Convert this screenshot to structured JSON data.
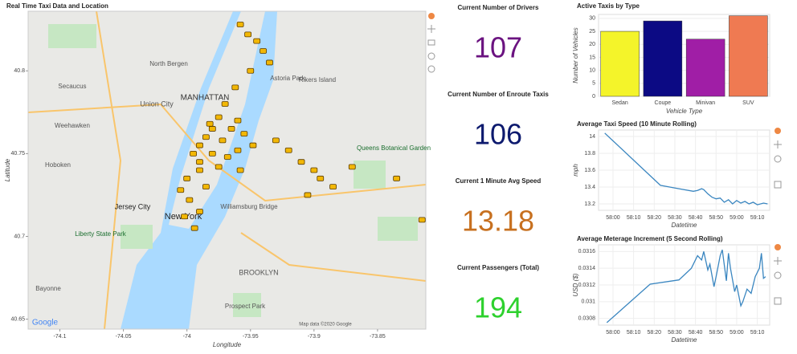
{
  "chart_data": [
    {
      "type": "scatter",
      "title": "Real Time Taxi Data and Location",
      "xlabel": "Longitude",
      "ylabel": "Latitude",
      "xlim": [
        -74.125,
        -73.812
      ],
      "ylim": [
        40.644,
        40.836
      ],
      "xticks": [
        -74.1,
        -74.05,
        -74,
        -73.95,
        -73.9,
        -73.85
      ],
      "yticks": [
        40.65,
        40.7,
        40.75,
        40.8
      ],
      "color": "#f2b705",
      "x": [
        -73.958,
        -73.952,
        -73.945,
        -73.94,
        -73.935,
        -73.95,
        -73.962,
        -73.97,
        -73.975,
        -73.98,
        -73.985,
        -73.99,
        -73.995,
        -73.99,
        -73.98,
        -73.972,
        -73.965,
        -73.96,
        -73.955,
        -73.948,
        -73.99,
        -74.0,
        -74.005,
        -73.998,
        -73.985,
        -73.975,
        -73.968,
        -73.99,
        -74.002,
        -73.994,
        -73.93,
        -73.92,
        -73.91,
        -73.9,
        -73.895,
        -73.885,
        -73.905,
        -73.87,
        -73.835,
        -73.815,
        -73.958,
        -73.982,
        -73.96
      ],
      "y": [
        40.828,
        40.822,
        40.818,
        40.812,
        40.805,
        40.8,
        40.79,
        40.78,
        40.772,
        40.765,
        40.76,
        40.755,
        40.75,
        40.745,
        40.75,
        40.758,
        40.765,
        40.77,
        40.762,
        40.755,
        40.74,
        40.735,
        40.728,
        40.722,
        40.73,
        40.742,
        40.748,
        40.715,
        40.712,
        40.705,
        40.758,
        40.752,
        40.745,
        40.74,
        40.735,
        40.73,
        40.725,
        40.742,
        40.735,
        40.71,
        40.74,
        40.768,
        40.752
      ]
    },
    {
      "type": "bar",
      "title": "Active Taxis by Type",
      "xlabel": "Vehicle Type",
      "ylabel": "Number of Vehicles",
      "categories": [
        "Sedan",
        "Coupe",
        "Minivan",
        "SUV"
      ],
      "values": [
        25,
        29,
        22,
        31
      ],
      "colors": [
        "#f4f42a",
        "#0c0a84",
        "#a01ea6",
        "#ef7a52"
      ],
      "ylim": [
        0,
        31.5
      ],
      "yticks": [
        0,
        5,
        10,
        15,
        20,
        25,
        30
      ],
      "grid": true
    },
    {
      "type": "line",
      "title": "Average Taxi Speed (10 Minute Rolling)",
      "xlabel": "Datetime",
      "ylabel": "mph",
      "color": "#3a86c0",
      "x": [
        3476,
        3503,
        3512,
        3519,
        3521,
        3523,
        3524,
        3526,
        3528,
        3530,
        3532,
        3534,
        3536,
        3538,
        3540,
        3542,
        3544,
        3546,
        3548,
        3550,
        3553,
        3555
      ],
      "values": [
        14.04,
        13.42,
        13.38,
        13.35,
        13.36,
        13.38,
        13.37,
        13.32,
        13.28,
        13.26,
        13.27,
        13.22,
        13.25,
        13.2,
        13.24,
        13.21,
        13.23,
        13.2,
        13.22,
        13.19,
        13.21,
        13.2
      ],
      "xlim": [
        3473,
        3556
      ],
      "ylim": [
        13.124,
        14.076
      ],
      "xticks": [
        {
          "value": 3480,
          "label": "58:00"
        },
        {
          "value": 3490,
          "label": "58:10"
        },
        {
          "value": 3500,
          "label": "58:20"
        },
        {
          "value": 3510,
          "label": "58:30"
        },
        {
          "value": 3520,
          "label": "58:40"
        },
        {
          "value": 3530,
          "label": "58:50"
        },
        {
          "value": 3540,
          "label": "59:00"
        },
        {
          "value": 3550,
          "label": "59:10"
        }
      ],
      "yticks": [
        13.2,
        13.4,
        13.6,
        13.8,
        14
      ],
      "grid": true
    },
    {
      "type": "line",
      "title": "Average Meterage Increment (5 Second Rolling)",
      "xlabel": "Datetime",
      "ylabel": "USD ($)",
      "color": "#3a86c0",
      "x": [
        3477,
        3498,
        3512,
        3518,
        3521,
        3523,
        3524,
        3526,
        3527,
        3529,
        3530,
        3532,
        3533,
        3535,
        3536,
        3537,
        3539,
        3540,
        3542,
        3543,
        3545,
        3547,
        3549,
        3551,
        3552,
        3553,
        3554
      ],
      "values": [
        0.03075,
        0.03121,
        0.03126,
        0.0314,
        0.03155,
        0.0315,
        0.0316,
        0.03138,
        0.03145,
        0.03118,
        0.0313,
        0.03155,
        0.03162,
        0.03125,
        0.03158,
        0.0314,
        0.03112,
        0.0312,
        0.03095,
        0.031,
        0.03115,
        0.0311,
        0.0313,
        0.0314,
        0.03158,
        0.03128,
        0.0313
      ],
      "xlim": [
        3473,
        3556
      ],
      "ylim": [
        0.03072,
        0.03168
      ],
      "xticks": [
        {
          "value": 3480,
          "label": "58:00"
        },
        {
          "value": 3490,
          "label": "58:10"
        },
        {
          "value": 3500,
          "label": "58:20"
        },
        {
          "value": 3510,
          "label": "58:30"
        },
        {
          "value": 3520,
          "label": "58:40"
        },
        {
          "value": 3530,
          "label": "58:50"
        },
        {
          "value": 3540,
          "label": "59:00"
        },
        {
          "value": 3550,
          "label": "59:10"
        }
      ],
      "yticks": [
        0.0308,
        0.031,
        0.0312,
        0.0314,
        0.0316
      ],
      "grid": true
    }
  ],
  "kpis": [
    {
      "label": "Current Number of Drivers",
      "value": "107",
      "color": "#6b1380"
    },
    {
      "label": "Current Number of Enroute Taxis",
      "value": "106",
      "color": "#0d1a6e"
    },
    {
      "label": "Current 1 Minute Avg Speed",
      "value": "13.18",
      "color": "#c7701f"
    },
    {
      "label": "Current Passengers (Total)",
      "value": "194",
      "color": "#2ed12e"
    }
  ],
  "map_labels": [
    "MANHATTAN",
    "New York",
    "Jersey City",
    "Hoboken",
    "BROOKLYN",
    "Astoria Park",
    "Rikers Island",
    "Union City",
    "Secaucus",
    "North Bergen",
    "Weehawken",
    "Williamsburg Bridge",
    "Prospect Park",
    "Liberty State Park",
    "Bayonne",
    "Queens Botanical Garden",
    "Google",
    "Map data ©2020 Google"
  ]
}
